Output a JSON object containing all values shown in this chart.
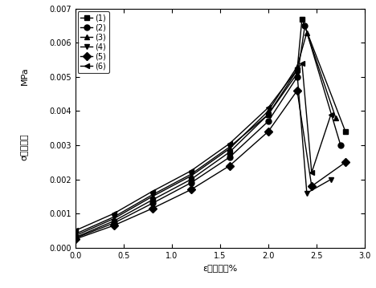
{
  "xlabel": "ε（应变）%",
  "ylabel_top": "MPa",
  "ylabel_bottom": "σ（应力）",
  "xlim": [
    0.0,
    3.0
  ],
  "ylim": [
    0.0,
    0.007
  ],
  "xticks": [
    0.0,
    0.5,
    1.0,
    1.5,
    2.0,
    2.5,
    3.0
  ],
  "yticks": [
    0.0,
    0.001,
    0.002,
    0.003,
    0.004,
    0.005,
    0.006,
    0.007
  ],
  "series": [
    {
      "label": "(1)",
      "marker": "s",
      "x": [
        0.0,
        0.4,
        0.8,
        1.2,
        1.6,
        2.0,
        2.3,
        2.35,
        2.8
      ],
      "y": [
        0.0003,
        0.00078,
        0.0014,
        0.002,
        0.0028,
        0.0039,
        0.0052,
        0.0067,
        0.0034
      ]
    },
    {
      "label": "(2)",
      "marker": "o",
      "x": [
        0.0,
        0.4,
        0.8,
        1.2,
        1.6,
        2.0,
        2.3,
        2.38,
        2.75
      ],
      "y": [
        0.00028,
        0.00072,
        0.0013,
        0.0019,
        0.00265,
        0.0037,
        0.005,
        0.0065,
        0.003
      ]
    },
    {
      "label": "(3)",
      "marker": "^",
      "x": [
        0.0,
        0.4,
        0.8,
        1.2,
        1.6,
        2.0,
        2.3,
        2.4,
        2.7
      ],
      "y": [
        0.00035,
        0.00085,
        0.0015,
        0.0021,
        0.0029,
        0.004,
        0.0053,
        0.0063,
        0.0038
      ]
    },
    {
      "label": "(4)",
      "marker": "v",
      "x": [
        0.0,
        0.4,
        0.8,
        1.2,
        1.6,
        2.0,
        2.3,
        2.4,
        2.65
      ],
      "y": [
        0.0004,
        0.0009,
        0.00155,
        0.00215,
        0.00295,
        0.0039,
        0.0051,
        0.0016,
        0.002
      ]
    },
    {
      "label": "(5)",
      "marker": "D",
      "x": [
        0.0,
        0.4,
        0.8,
        1.2,
        1.6,
        2.0,
        2.3,
        2.45,
        2.8
      ],
      "y": [
        0.00025,
        0.00065,
        0.00115,
        0.0017,
        0.0024,
        0.0034,
        0.0046,
        0.0018,
        0.0025
      ]
    },
    {
      "label": "(6)",
      "marker": "4",
      "x": [
        0.0,
        0.4,
        0.8,
        1.2,
        1.6,
        2.0,
        2.35,
        2.45,
        2.65
      ],
      "y": [
        0.0005,
        0.001,
        0.00165,
        0.00225,
        0.00305,
        0.0041,
        0.0054,
        0.0022,
        0.0039
      ]
    }
  ],
  "line_color": "#000000",
  "bg_color": "#ffffff",
  "markersize": 5,
  "linewidth": 1.0,
  "legend_fontsize": 7,
  "tick_fontsize": 7,
  "axis_label_fontsize": 8
}
